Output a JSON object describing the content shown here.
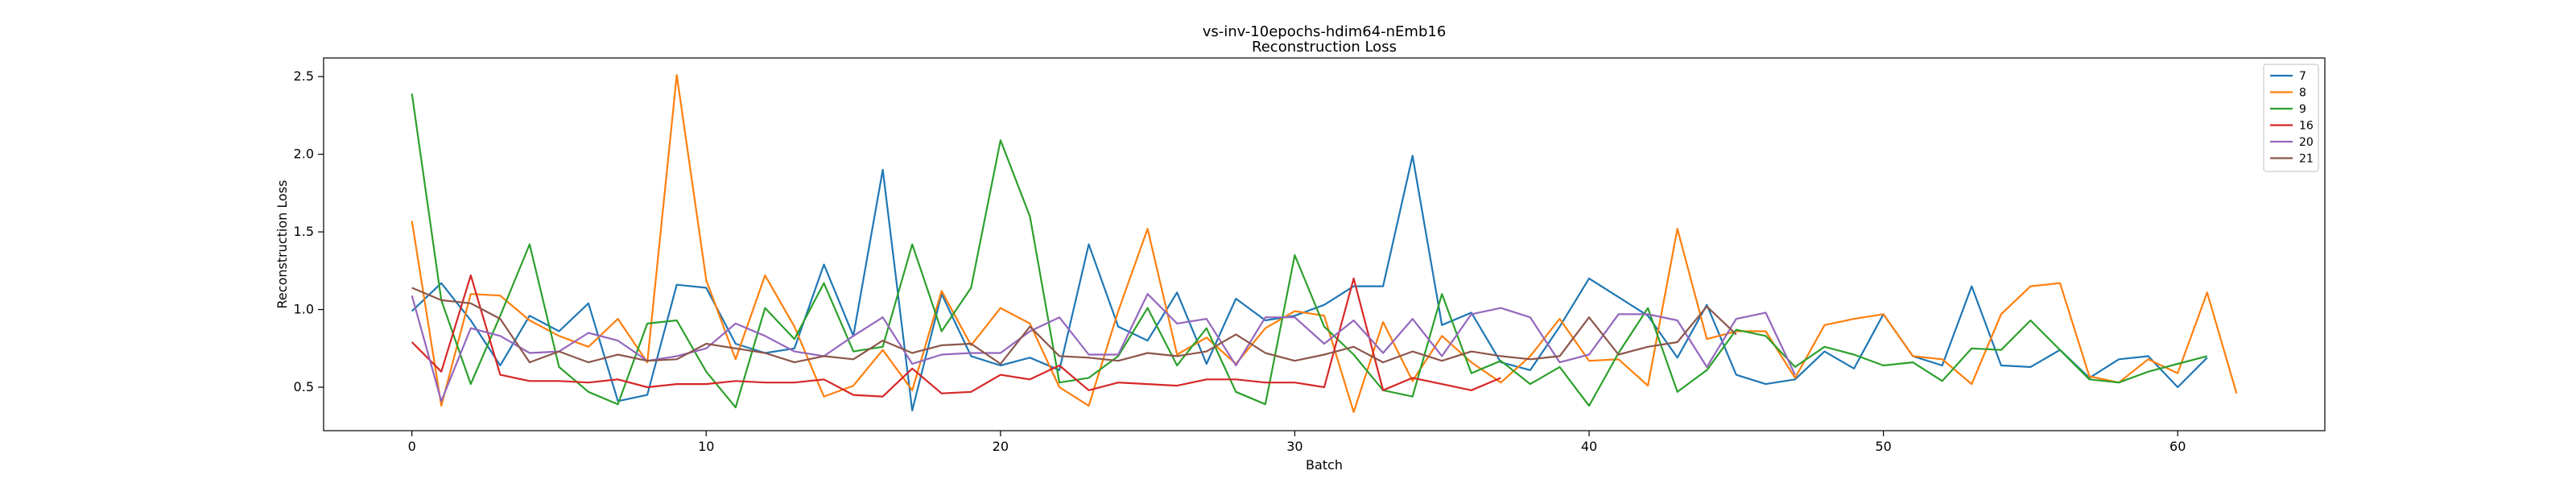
{
  "chart_data": {
    "type": "line",
    "title": "vs-inv-10epochs-hdim64-nEmb16",
    "subtitle": "Reconstruction Loss",
    "xlabel": "Batch",
    "ylabel": "Reconstruction Loss",
    "xlim": [
      -3,
      65
    ],
    "ylim": [
      0.22,
      2.62
    ],
    "xticks": [
      0,
      10,
      20,
      30,
      40,
      50,
      60
    ],
    "yticks": [
      0.5,
      1.0,
      1.5,
      2.0,
      2.5
    ],
    "ytick_labels": [
      "0.5",
      "1.0",
      "1.5",
      "2.0",
      "2.5"
    ],
    "legend_position": "top-right",
    "grid": false,
    "series": [
      {
        "name": "7",
        "color": "#1f77b4",
        "values": [
          0.99,
          1.17,
          0.93,
          0.64,
          0.96,
          0.86,
          1.04,
          0.41,
          0.45,
          1.16,
          1.14,
          0.78,
          0.72,
          0.75,
          1.29,
          0.83,
          1.9,
          0.35,
          1.1,
          0.7,
          0.64,
          0.69,
          0.61,
          1.42,
          0.89,
          0.8,
          1.11,
          0.65,
          1.07,
          0.93,
          0.96,
          1.03,
          1.15,
          1.15,
          1.99,
          0.9,
          0.98,
          0.66,
          0.61,
          0.89,
          1.2,
          1.08,
          0.96,
          0.69,
          1.03,
          0.58,
          0.52,
          0.55,
          0.73,
          0.62,
          0.97,
          0.7,
          0.64,
          1.15,
          0.64,
          0.63,
          0.74,
          0.56,
          0.68,
          0.7,
          0.5,
          0.69
        ]
      },
      {
        "name": "8",
        "color": "#ff7f0e",
        "values": [
          1.57,
          0.38,
          1.1,
          1.09,
          0.93,
          0.83,
          0.76,
          0.94,
          0.66,
          2.51,
          1.19,
          0.68,
          1.22,
          0.89,
          0.44,
          0.51,
          0.74,
          0.48,
          1.12,
          0.77,
          1.01,
          0.91,
          0.5,
          0.38,
          0.99,
          1.52,
          0.71,
          0.82,
          0.65,
          0.88,
          0.99,
          0.96,
          0.34,
          0.92,
          0.54,
          0.83,
          0.66,
          0.53,
          0.7,
          0.94,
          0.67,
          0.68,
          0.51,
          1.52,
          0.81,
          0.86,
          0.86,
          0.56,
          0.9,
          0.94,
          0.97,
          0.7,
          0.68,
          0.52,
          0.97,
          1.15,
          1.17,
          0.57,
          0.53,
          0.68,
          0.59,
          1.11,
          0.46
        ]
      },
      {
        "name": "9",
        "color": "#2ca02c",
        "values": [
          2.39,
          1.06,
          0.52,
          0.96,
          1.42,
          0.63,
          0.47,
          0.39,
          0.91,
          0.93,
          0.6,
          0.37,
          1.01,
          0.81,
          1.17,
          0.73,
          0.76,
          1.42,
          0.86,
          1.14,
          2.09,
          1.6,
          0.53,
          0.56,
          0.7,
          1.01,
          0.64,
          0.88,
          0.47,
          0.39,
          1.35,
          0.89,
          0.71,
          0.48,
          0.44,
          1.1,
          0.59,
          0.67,
          0.52,
          0.63,
          0.38,
          0.72,
          1.01,
          0.47,
          0.61,
          0.87,
          0.83,
          0.63,
          0.76,
          0.71,
          0.64,
          0.66,
          0.54,
          0.75,
          0.74,
          0.93,
          0.74,
          0.55,
          0.53,
          0.6,
          0.65,
          0.7
        ]
      },
      {
        "name": "16",
        "color": "#d62728",
        "values": [
          0.79,
          0.6,
          1.22,
          0.58,
          0.54,
          0.54,
          0.53,
          0.55,
          0.5,
          0.52,
          0.52,
          0.54,
          0.53,
          0.53,
          0.55,
          0.45,
          0.44,
          0.62,
          0.46,
          0.47,
          0.58,
          0.55,
          0.64,
          0.48,
          0.53,
          0.52,
          0.51,
          0.55,
          0.55,
          0.53,
          0.53,
          0.5,
          1.2,
          0.48,
          0.56,
          0.52,
          0.48,
          0.56
        ]
      },
      {
        "name": "20",
        "color": "#9467bd",
        "values": [
          1.09,
          0.41,
          0.88,
          0.83,
          0.72,
          0.73,
          0.85,
          0.8,
          0.67,
          0.7,
          0.75,
          0.91,
          0.83,
          0.73,
          0.7,
          0.83,
          0.95,
          0.65,
          0.71,
          0.72,
          0.72,
          0.86,
          0.95,
          0.71,
          0.71,
          1.1,
          0.91,
          0.94,
          0.64,
          0.95,
          0.95,
          0.78,
          0.93,
          0.72,
          0.94,
          0.7,
          0.97,
          1.01,
          0.95,
          0.66,
          0.71,
          0.97,
          0.97,
          0.93,
          0.63,
          0.94,
          0.98,
          0.58
        ]
      },
      {
        "name": "21",
        "color": "#8c564b",
        "values": [
          1.14,
          1.06,
          1.04,
          0.94,
          0.66,
          0.73,
          0.66,
          0.71,
          0.67,
          0.68,
          0.78,
          0.75,
          0.72,
          0.66,
          0.7,
          0.68,
          0.8,
          0.72,
          0.77,
          0.78,
          0.65,
          0.89,
          0.7,
          0.69,
          0.67,
          0.72,
          0.7,
          0.73,
          0.84,
          0.72,
          0.67,
          0.71,
          0.76,
          0.66,
          0.73,
          0.67,
          0.73,
          0.7,
          0.68,
          0.7,
          0.95,
          0.71,
          0.76,
          0.79,
          1.02,
          0.84
        ]
      }
    ]
  }
}
